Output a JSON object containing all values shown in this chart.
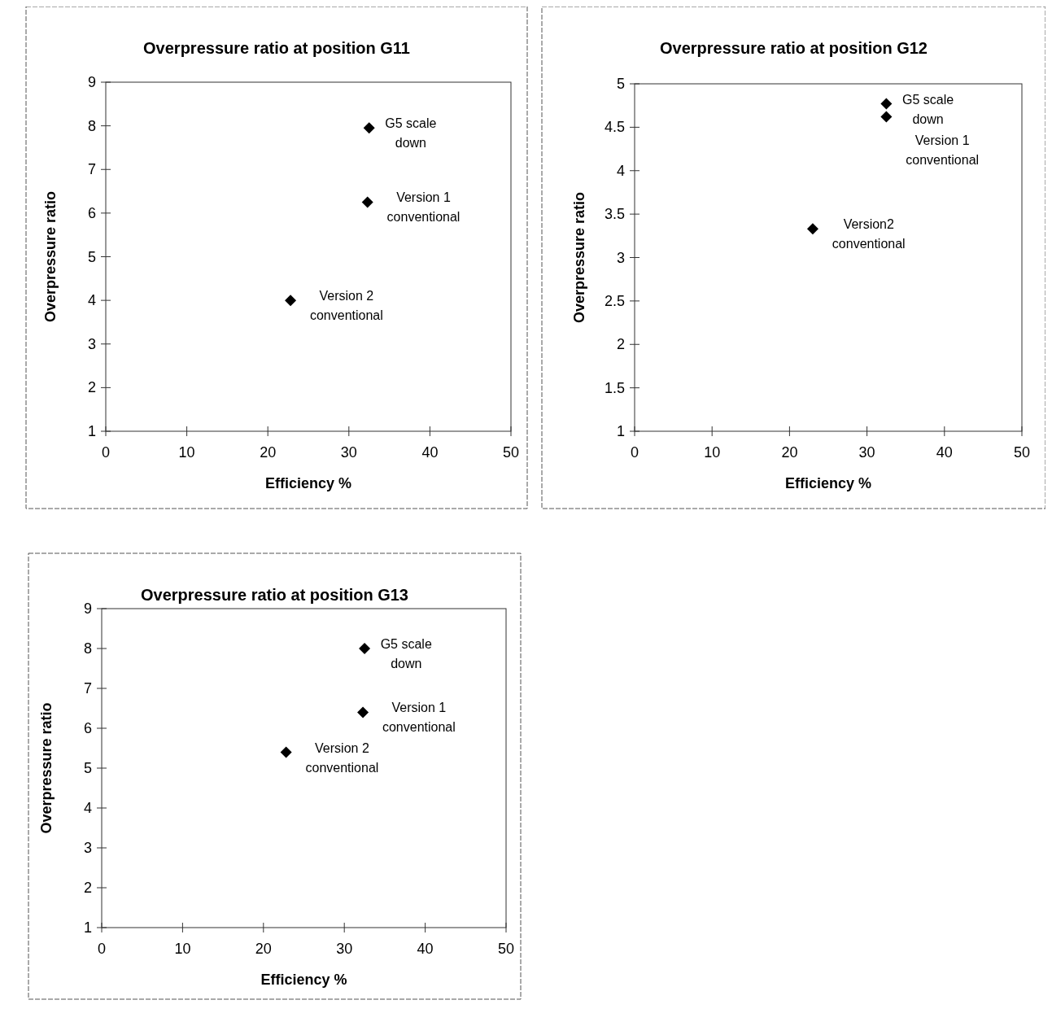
{
  "chart_data": [
    {
      "type": "scatter",
      "title": "Overpressure ratio at position G11",
      "xlabel": "Efficiency %",
      "ylabel": "Overpressure ratio",
      "x": [
        32.5,
        32.3,
        22.8
      ],
      "series": [
        {
          "color": "#000000",
          "values": [
            7.95,
            6.25,
            4.0
          ]
        }
      ],
      "marker": "diamond",
      "xlim": [
        0,
        50
      ],
      "ylim": [
        1,
        9
      ],
      "xticks": [
        0,
        10,
        20,
        30,
        40,
        50
      ],
      "yticks": [
        1,
        2,
        3,
        4,
        5,
        6,
        7,
        8,
        9
      ],
      "annotations": [
        {
          "text": "G5 scale down",
          "x": 32.5,
          "y": 7.95
        },
        {
          "text": "Version 1 conventional",
          "x": 32.3,
          "y": 6.25
        },
        {
          "text": "Version 2 conventional",
          "x": 22.8,
          "y": 4.0
        }
      ]
    },
    {
      "type": "scatter",
      "title": "Overpressure ratio at position G12",
      "xlabel": "Efficiency %",
      "ylabel": "Overpressure ratio",
      "x": [
        32.5,
        32.5,
        23
      ],
      "series": [
        {
          "color": "#000000",
          "values": [
            4.77,
            4.62,
            3.33
          ]
        }
      ],
      "marker": "diamond",
      "xlim": [
        0,
        50
      ],
      "ylim": [
        1,
        5
      ],
      "xticks": [
        0,
        10,
        20,
        30,
        40,
        50
      ],
      "yticks": [
        1,
        1.5,
        2,
        2.5,
        3,
        3.5,
        4,
        4.5,
        5
      ],
      "annotations": [
        {
          "text": "G5 scale down",
          "x": 32.5,
          "y": 4.77
        },
        {
          "text": "Version 1 conventional",
          "x": 32.5,
          "y": 4.62
        },
        {
          "text": "Version2 conventional",
          "x": 23,
          "y": 3.33
        }
      ]
    },
    {
      "type": "scatter",
      "title": "Overpressure ratio at position G13",
      "xlabel": "Efficiency %",
      "ylabel": "Overpressure ratio",
      "x": [
        32.5,
        32.3,
        22.8
      ],
      "series": [
        {
          "color": "#000000",
          "values": [
            8.0,
            6.4,
            5.4
          ]
        }
      ],
      "marker": "diamond",
      "xlim": [
        0,
        50
      ],
      "ylim": [
        1,
        9
      ],
      "xticks": [
        0,
        10,
        20,
        30,
        40,
        50
      ],
      "yticks": [
        1,
        2,
        3,
        4,
        5,
        6,
        7,
        8,
        9
      ],
      "annotations": [
        {
          "text": "G5 scale down",
          "x": 32.5,
          "y": 8.0
        },
        {
          "text": "Version 1 conventional",
          "x": 32.3,
          "y": 6.4
        },
        {
          "text": "Version 2 conventional",
          "x": 22.8,
          "y": 5.4
        }
      ]
    }
  ]
}
